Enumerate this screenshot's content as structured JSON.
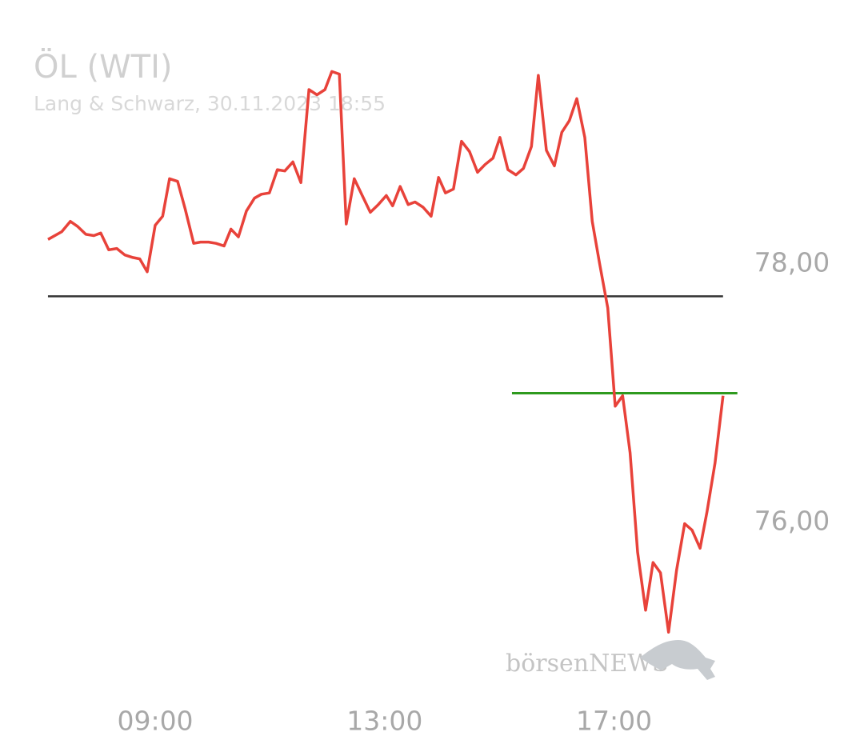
{
  "chart_data": {
    "type": "line",
    "title": "ÖL (WTI)",
    "subtitle": "Lang & Schwarz, 30.11.2023 18:55",
    "watermark": "börsenNEWS",
    "x": [
      7.13,
      7.37,
      7.52,
      7.65,
      7.79,
      7.93,
      8.05,
      8.19,
      8.33,
      8.47,
      8.61,
      8.73,
      8.86,
      9.0,
      9.13,
      9.25,
      9.39,
      9.52,
      9.67,
      9.79,
      9.93,
      10.06,
      10.2,
      10.32,
      10.45,
      10.59,
      10.73,
      10.85,
      10.99,
      11.13,
      11.26,
      11.4,
      11.54,
      11.68,
      11.82,
      11.96,
      12.08,
      12.21,
      12.33,
      12.47,
      12.61,
      12.75,
      12.89,
      13.03,
      13.14,
      13.27,
      13.41,
      13.53,
      13.67,
      13.81,
      13.94,
      14.06,
      14.2,
      14.34,
      14.48,
      14.62,
      14.75,
      14.89,
      15.01,
      15.15,
      15.29,
      15.42,
      15.56,
      15.68,
      15.82,
      15.96,
      16.09,
      16.22,
      16.35,
      16.49,
      16.62,
      16.75,
      16.89,
      17.02,
      17.15,
      17.28,
      17.41,
      17.55,
      17.68,
      17.81,
      17.95,
      18.09,
      18.23,
      18.36,
      18.5,
      18.62,
      18.76,
      18.9
    ],
    "values": [
      78.19,
      78.25,
      78.33,
      78.29,
      78.23,
      78.22,
      78.24,
      78.11,
      78.12,
      78.07,
      78.05,
      78.04,
      77.94,
      78.3,
      78.37,
      78.66,
      78.64,
      78.43,
      78.16,
      78.17,
      78.17,
      78.16,
      78.14,
      78.27,
      78.21,
      78.41,
      78.51,
      78.54,
      78.55,
      78.73,
      78.72,
      78.79,
      78.63,
      79.35,
      79.31,
      79.35,
      79.49,
      79.47,
      78.31,
      78.66,
      78.53,
      78.4,
      78.46,
      78.53,
      78.45,
      78.6,
      78.46,
      78.48,
      78.44,
      78.37,
      78.67,
      78.55,
      78.58,
      78.95,
      78.87,
      78.71,
      78.77,
      78.82,
      78.98,
      78.73,
      78.69,
      78.74,
      78.91,
      79.46,
      78.88,
      78.76,
      79.02,
      79.11,
      79.28,
      78.98,
      78.33,
      78.0,
      77.66,
      76.9,
      76.98,
      76.54,
      75.77,
      75.32,
      75.69,
      75.61,
      75.15,
      75.63,
      75.99,
      75.94,
      75.8,
      76.08,
      76.46,
      76.98
    ],
    "color": "#e8423a",
    "reference_lines": [
      {
        "value": 77.75,
        "color": "#333333"
      },
      {
        "value": 77.0,
        "color": "#2e9a1e",
        "x": [
          15.22,
          19.15
        ]
      }
    ],
    "xlim": [
      7.1,
      19.2
    ],
    "ylim": [
      75.0,
      79.75
    ],
    "xticks": [
      {
        "value": 9,
        "label": "09:00"
      },
      {
        "value": 13,
        "label": "13:00"
      },
      {
        "value": 17,
        "label": "17:00"
      }
    ],
    "yticks": [
      {
        "value": 76,
        "label": "76,00"
      },
      {
        "value": 78,
        "label": "78,00"
      }
    ]
  }
}
